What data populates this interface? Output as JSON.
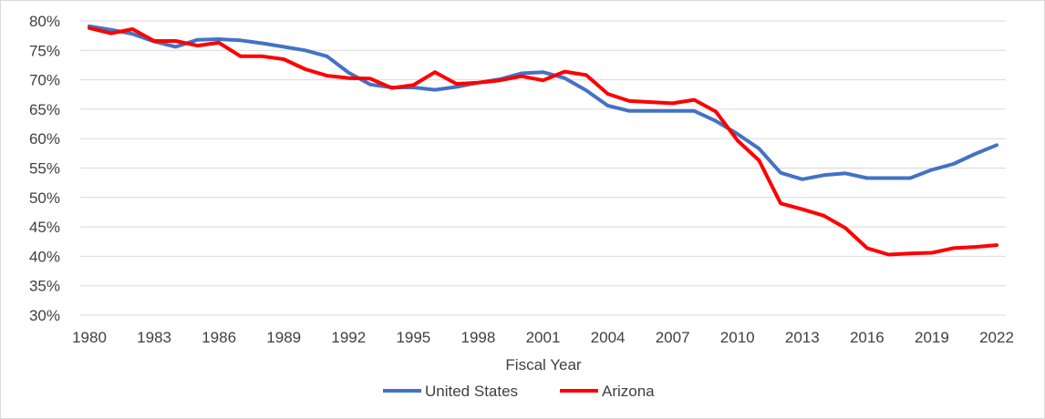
{
  "chart_data": {
    "type": "line",
    "title": "",
    "xlabel": "Fiscal Year",
    "ylabel": "",
    "x": [
      1980,
      1981,
      1982,
      1983,
      1984,
      1985,
      1986,
      1987,
      1988,
      1989,
      1990,
      1991,
      1992,
      1993,
      1994,
      1995,
      1996,
      1997,
      1998,
      1999,
      2000,
      2001,
      2002,
      2003,
      2004,
      2005,
      2006,
      2007,
      2008,
      2009,
      2010,
      2011,
      2012,
      2013,
      2014,
      2015,
      2016,
      2017,
      2018,
      2019,
      2020,
      2021,
      2022
    ],
    "x_ticks": [
      1980,
      1983,
      1986,
      1989,
      1992,
      1995,
      1998,
      2001,
      2004,
      2007,
      2010,
      2013,
      2016,
      2019,
      2022
    ],
    "y_ticks": [
      30,
      35,
      40,
      45,
      50,
      55,
      60,
      65,
      70,
      75,
      80
    ],
    "ylim": [
      30,
      80
    ],
    "y_unit": "%",
    "grid": "horizontal",
    "legend_position": "bottom",
    "series": [
      {
        "name": "United States",
        "color": "#4472c4",
        "values": [
          79.1,
          78.5,
          77.8,
          76.5,
          75.6,
          76.8,
          76.9,
          76.7,
          76.2,
          75.6,
          75.0,
          74.0,
          71.2,
          69.2,
          68.7,
          68.7,
          68.3,
          68.8,
          69.5,
          70.1,
          71.1,
          71.3,
          70.3,
          68.2,
          65.6,
          64.7,
          64.7,
          64.7,
          64.7,
          63.0,
          60.8,
          58.3,
          54.2,
          53.1,
          53.8,
          54.1,
          53.3,
          53.3,
          53.3,
          54.7,
          55.7,
          57.4,
          58.9
        ]
      },
      {
        "name": "Arizona",
        "color": "#ff0000",
        "values": [
          78.8,
          77.9,
          78.6,
          76.6,
          76.6,
          75.8,
          76.3,
          74.0,
          74.0,
          73.5,
          71.8,
          70.7,
          70.3,
          70.2,
          68.6,
          69.1,
          71.3,
          69.3,
          69.5,
          69.9,
          70.6,
          69.9,
          71.4,
          70.8,
          67.6,
          66.4,
          66.2,
          66.0,
          66.6,
          64.6,
          59.7,
          56.3,
          49.0,
          48.0,
          46.9,
          44.8,
          41.4,
          40.3,
          40.5,
          40.6,
          41.4,
          41.6,
          41.9
        ]
      }
    ]
  }
}
